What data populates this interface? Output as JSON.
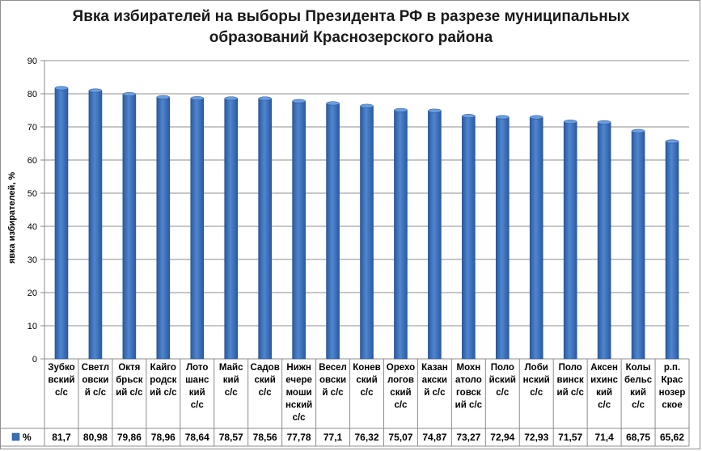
{
  "chart_data": {
    "type": "bar",
    "title": [
      "Явка избирателей на выборы Президента РФ в разрезе муниципальных",
      "образований Краснозерского района"
    ],
    "ylabel": "явка избирателей, %",
    "xlabel": "",
    "ylim": [
      0,
      90
    ],
    "yticks": [
      0,
      10,
      20,
      30,
      40,
      50,
      60,
      70,
      80,
      90
    ],
    "grid": "horizontal",
    "color": "#3b6fb8",
    "categories": [
      [
        "Зубко",
        "вский",
        "с/с"
      ],
      [
        "Светл",
        "овски",
        "й с/с"
      ],
      [
        "Октя",
        "брьск",
        "ий с/с"
      ],
      [
        "Кайго",
        "родск",
        "ий с/с"
      ],
      [
        "Лото",
        "шанс",
        "кий",
        "с/с"
      ],
      [
        "Майс",
        "кий",
        "с/с"
      ],
      [
        "Садов",
        "ский",
        "с/с"
      ],
      [
        "Нижн",
        "ечере",
        "моши",
        "нский",
        "с/с"
      ],
      [
        "Весел",
        "овски",
        "й с/с"
      ],
      [
        "Конев",
        "ский",
        "с/с"
      ],
      [
        "Орехо",
        "логов",
        "ский",
        "с/с"
      ],
      [
        "Казан",
        "акски",
        "й с/с"
      ],
      [
        "Мохн",
        "атоло",
        "говск",
        "ий с/с"
      ],
      [
        "Поло",
        "йский",
        "с/с"
      ],
      [
        "Лоби",
        "нский",
        "с/с"
      ],
      [
        "Поло",
        "винск",
        "ий с/с"
      ],
      [
        "Аксен",
        "ихинс",
        "кий",
        "с/с"
      ],
      [
        "Колы",
        "бельс",
        "кий",
        "с/с"
      ],
      [
        "р.п.",
        "Крас",
        "нозер",
        "ское"
      ]
    ],
    "series": [
      {
        "name": "%",
        "values": [
          81.7,
          80.98,
          79.86,
          78.96,
          78.64,
          78.57,
          78.56,
          77.78,
          77.1,
          76.32,
          75.07,
          74.87,
          73.27,
          72.94,
          72.93,
          71.57,
          71.4,
          68.75,
          65.62
        ],
        "labels": [
          "81,7",
          "80,98",
          "79,86",
          "78,96",
          "78,64",
          "78,57",
          "78,56",
          "77,78",
          "77,1",
          "76,32",
          "75,07",
          "74,87",
          "73,27",
          "72,94",
          "72,93",
          "71,57",
          "71,4",
          "68,75",
          "65,62"
        ]
      }
    ]
  }
}
